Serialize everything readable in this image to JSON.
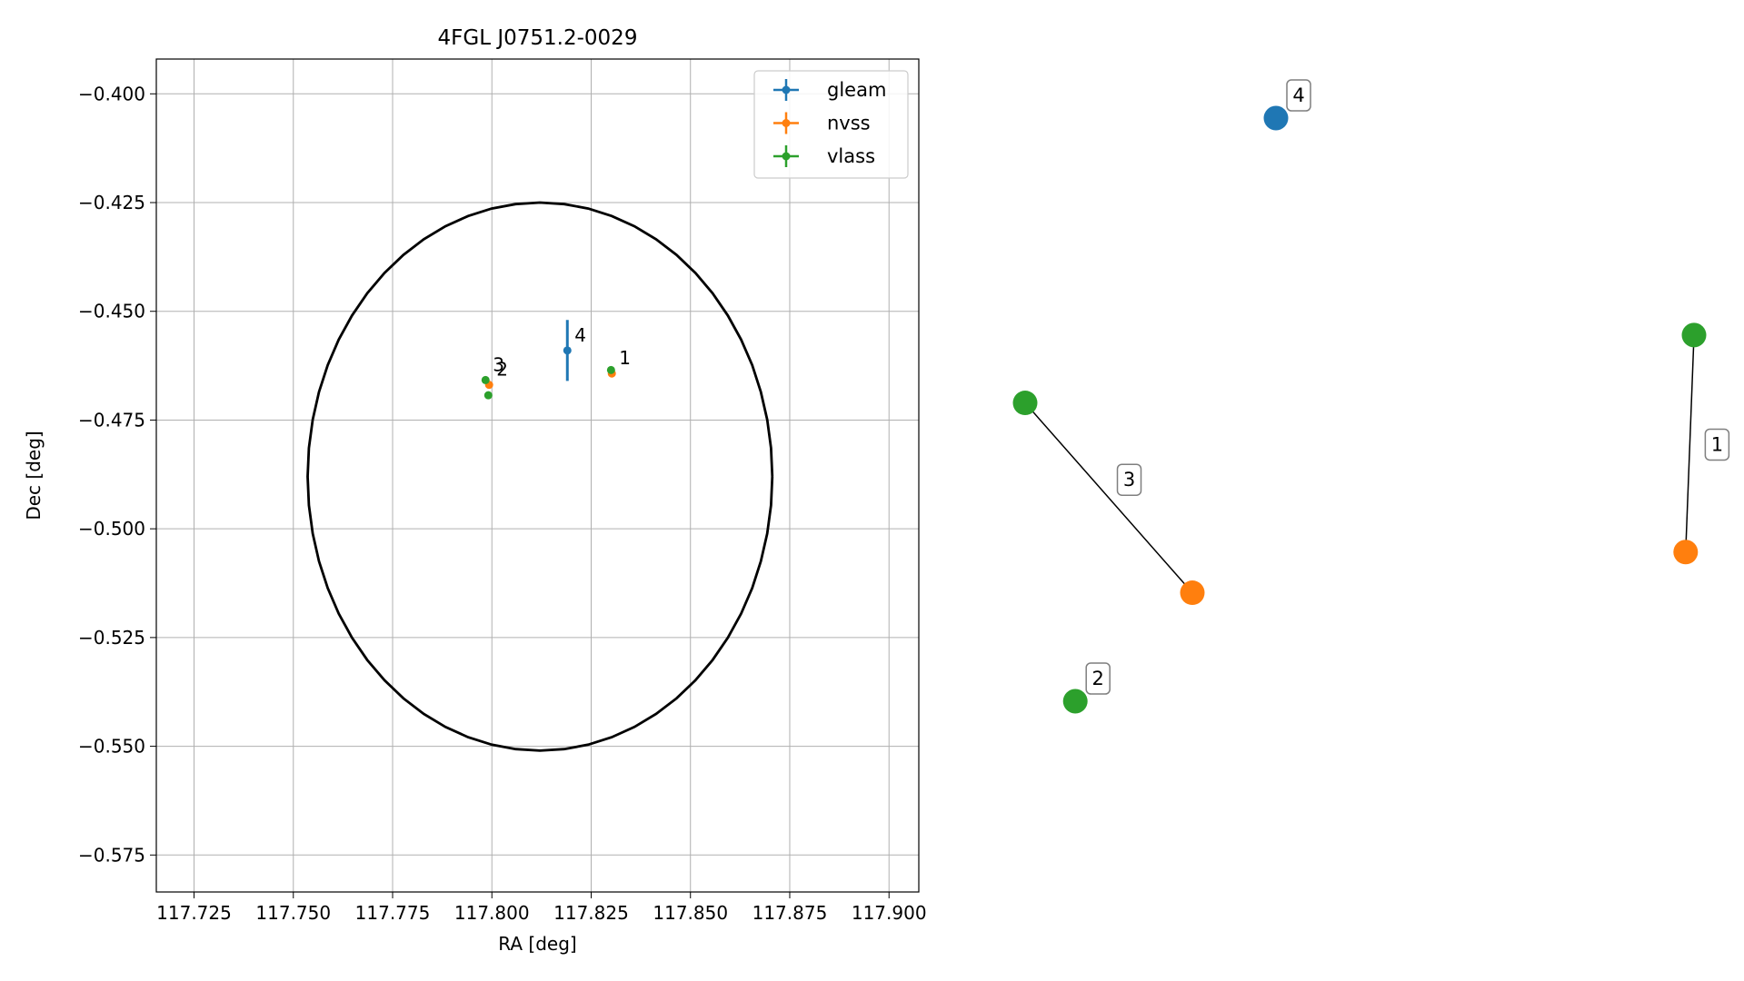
{
  "chart_data": [
    {
      "type": "scatter",
      "title": "4FGL J0751.2-0029",
      "xlabel": "RA [deg]",
      "ylabel": "Dec [deg]",
      "xlim": [
        117.7155,
        117.9075
      ],
      "ylim": [
        -0.5835,
        -0.392
      ],
      "x_ticks": [
        117.725,
        117.75,
        117.775,
        117.8,
        117.825,
        117.85,
        117.875,
        117.9
      ],
      "x_tick_labels": [
        "117.725",
        "117.750",
        "117.775",
        "117.800",
        "117.825",
        "117.850",
        "117.875",
        "117.900"
      ],
      "y_ticks": [
        -0.4,
        -0.425,
        -0.45,
        -0.475,
        -0.5,
        -0.525,
        -0.55,
        -0.575
      ],
      "y_tick_labels": [
        "−0.400",
        "−0.425",
        "−0.450",
        "−0.475",
        "−0.500",
        "−0.525",
        "−0.550",
        "−0.575"
      ],
      "grid": true,
      "legend_position": "top-right",
      "ellipse": {
        "center": [
          117.8121,
          -0.488
        ],
        "semi_axis_ra": 0.0585,
        "semi_axis_dec": 0.063
      },
      "series": [
        {
          "name": "gleam",
          "color": "#1f77b4",
          "points": [
            {
              "x": 117.819,
              "y": -0.459,
              "yerr": 0.007,
              "xerr": 0.0
            }
          ]
        },
        {
          "name": "nvss",
          "color": "#ff7f0e",
          "points": [
            {
              "x": 117.8302,
              "y": -0.4643,
              "xerr": 0.0,
              "yerr": 0.0
            },
            {
              "x": 117.7993,
              "y": -0.4669,
              "xerr": 0.0,
              "yerr": 0.0
            }
          ]
        },
        {
          "name": "vlass",
          "color": "#2ca02c",
          "points": [
            {
              "x": 117.83,
              "y": -0.4635,
              "xerr": 0.0,
              "yerr": 0.0
            },
            {
              "x": 117.7984,
              "y": -0.4658,
              "xerr": 0.0,
              "yerr": 0.0
            },
            {
              "x": 117.7991,
              "y": -0.4693,
              "xerr": 0.0,
              "yerr": 0.0
            }
          ]
        }
      ],
      "annotations": [
        {
          "text": "1",
          "x": 117.8302,
          "y": -0.4643
        },
        {
          "text": "2",
          "x": 117.7993,
          "y": -0.4669
        },
        {
          "text": "3",
          "x": 117.7984,
          "y": -0.4658
        },
        {
          "text": "4",
          "x": 117.819,
          "y": -0.459
        }
      ]
    },
    {
      "type": "diagram",
      "nodes": [
        {
          "id": "n4-gleam",
          "color": "#1f77b4",
          "x": 0.2,
          "y": 4.8
        },
        {
          "id": "n1-vlass",
          "color": "#2ca02c",
          "x": 5.2,
          "y": 3.2
        },
        {
          "id": "n1-nvss",
          "color": "#ff7f0e",
          "x": 5.1,
          "y": 1.6
        },
        {
          "id": "n3-vlass",
          "color": "#2ca02c",
          "x": -2.8,
          "y": 2.7
        },
        {
          "id": "n3-nvss",
          "color": "#ff7f0e",
          "x": -0.8,
          "y": 1.3
        },
        {
          "id": "n2-vlass",
          "color": "#2ca02c",
          "x": -2.2,
          "y": 0.5
        }
      ],
      "edges": [
        {
          "from": "n1-vlass",
          "to": "n1-nvss"
        },
        {
          "from": "n3-vlass",
          "to": "n3-nvss"
        }
      ],
      "labels": [
        {
          "text": "4",
          "node": "n4-gleam"
        },
        {
          "text": "1",
          "edge": 0
        },
        {
          "text": "3",
          "edge": 1
        },
        {
          "text": "2",
          "node": "n2-vlass"
        }
      ]
    }
  ]
}
